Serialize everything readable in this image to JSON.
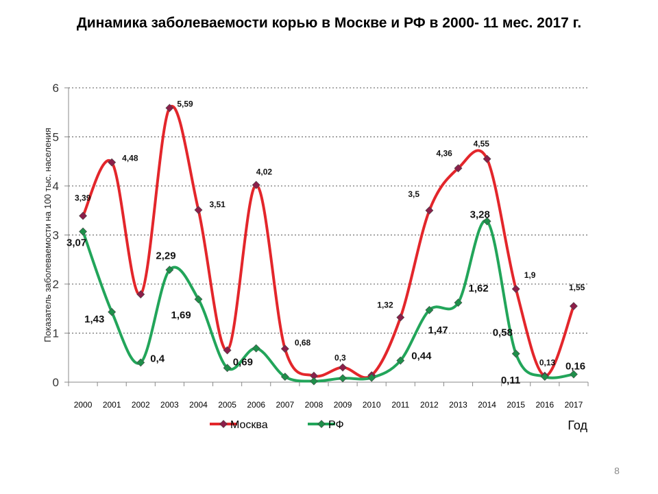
{
  "slide": {
    "title": "Динамика заболеваемости корью в Москве и РФ в 2000- 11 мес. 2017 г.",
    "page_number": "8"
  },
  "chart_data": {
    "type": "line",
    "title": "Динамика заболеваемости корью в Москве и РФ в 2000- 11 мес. 2017 г.",
    "xlabel": "Год",
    "ylabel": "Показатель заболеваемости на 100 тыс. населения",
    "categories": [
      "2000",
      "2001",
      "2002",
      "2003",
      "2004",
      "2005",
      "2006",
      "2007",
      "2008",
      "2009",
      "2010",
      "2011",
      "2012",
      "2013",
      "2014",
      "2015",
      "2016",
      "2017"
    ],
    "ylim": [
      0,
      6
    ],
    "yticks": [
      0,
      1,
      2,
      3,
      4,
      5,
      6
    ],
    "grid": "horizontal dotted",
    "legend": "bottom",
    "smooth": true,
    "series": [
      {
        "name": "Москва",
        "color": "#e3262b",
        "marker_color": "#8b1f4a",
        "values": [
          3.39,
          4.48,
          1.79,
          5.59,
          3.51,
          0.65,
          4.02,
          0.68,
          0.13,
          0.3,
          0.14,
          1.32,
          3.5,
          4.36,
          4.55,
          1.9,
          0.13,
          1.55
        ],
        "labels": [
          "3,39",
          "4,48",
          "",
          "5,59",
          "3,51",
          "",
          "4,02",
          "0,68",
          "",
          "0,3",
          "",
          "1,32",
          "3,5",
          "4,36",
          "4,55",
          "1,9",
          "0,13",
          "1,55"
        ]
      },
      {
        "name": "РФ",
        "color": "#22a55a",
        "marker_color": "#1e8f4a",
        "values": [
          3.07,
          1.43,
          0.4,
          2.29,
          1.69,
          0.29,
          0.69,
          0.11,
          0.02,
          0.08,
          0.09,
          0.44,
          1.47,
          1.62,
          3.28,
          0.58,
          0.11,
          0.16
        ],
        "labels": [
          "3,07",
          "1,43",
          "0,4",
          "2,29",
          "1,69",
          "",
          "0,69",
          "",
          "",
          "",
          "",
          "0,44",
          "1,47",
          "1,62",
          "3,28",
          "0,58",
          "0,11",
          "0,16"
        ]
      }
    ]
  }
}
